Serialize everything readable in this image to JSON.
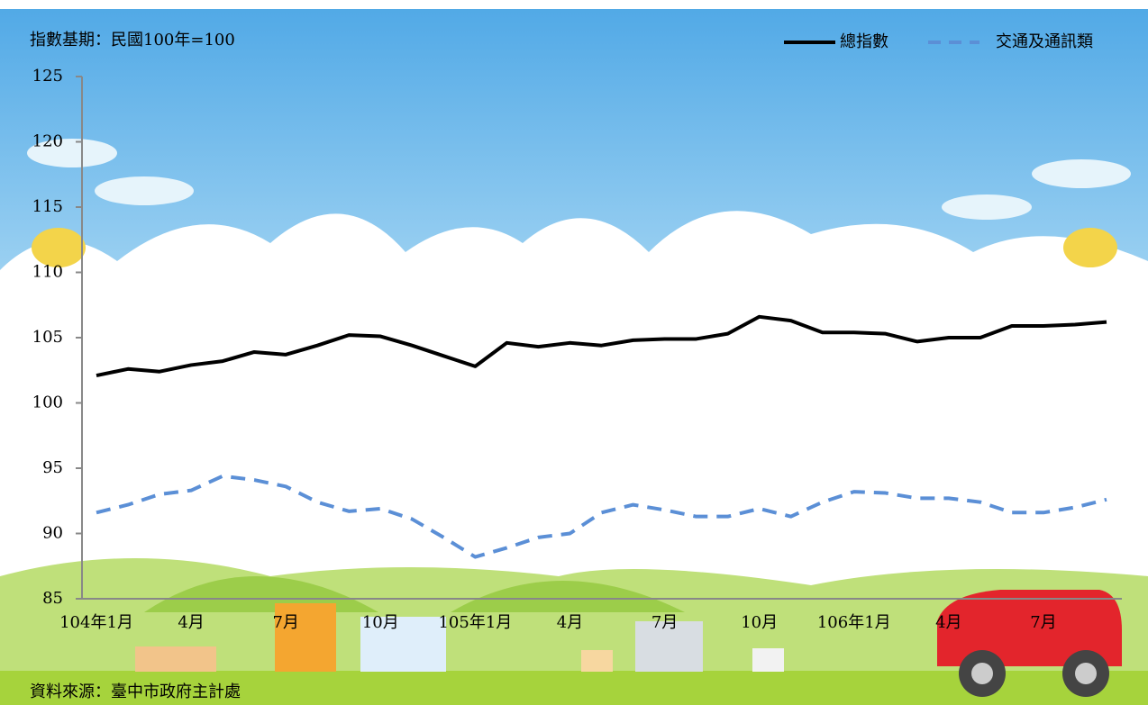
{
  "chart_data": {
    "type": "line",
    "subtitle": "指數基期：民國100年=100",
    "source": "資料來源：臺中市政府主計處",
    "categories": [
      "104年1月",
      null,
      null,
      "4月",
      null,
      null,
      "7月",
      null,
      null,
      "10月",
      null,
      null,
      "105年1月",
      null,
      null,
      "4月",
      null,
      null,
      "7月",
      null,
      null,
      "10月",
      null,
      null,
      "106年1月",
      null,
      null,
      "4月",
      null,
      null,
      "7月",
      null,
      null
    ],
    "series": [
      {
        "name": "總指數",
        "color": "#000000",
        "dashed": false,
        "values": [
          102.1,
          102.6,
          102.4,
          102.9,
          103.2,
          103.9,
          103.7,
          104.4,
          105.2,
          105.1,
          104.4,
          103.6,
          102.8,
          104.6,
          104.3,
          104.6,
          104.4,
          104.8,
          104.9,
          104.9,
          105.3,
          106.6,
          106.3,
          105.4,
          105.4,
          105.3,
          104.7,
          105.0,
          105.0,
          105.9,
          105.9,
          106.0,
          106.2
        ]
      },
      {
        "name": "交通及通訊類",
        "color": "#5b8fd6",
        "dashed": true,
        "values": [
          91.6,
          92.2,
          93.0,
          93.3,
          94.4,
          94.1,
          93.6,
          92.4,
          91.7,
          91.9,
          91.1,
          89.7,
          88.2,
          88.9,
          89.7,
          90.0,
          91.6,
          92.2,
          91.8,
          91.3,
          91.3,
          91.9,
          91.3,
          92.4,
          93.2,
          93.1,
          92.7,
          92.7,
          92.4,
          91.6,
          91.6,
          92.0,
          92.6
        ]
      }
    ],
    "ylim": [
      85,
      125
    ],
    "yticks": [
      85,
      90,
      95,
      100,
      105,
      110,
      115,
      120,
      125
    ],
    "grid": false,
    "legend": "top-right"
  }
}
